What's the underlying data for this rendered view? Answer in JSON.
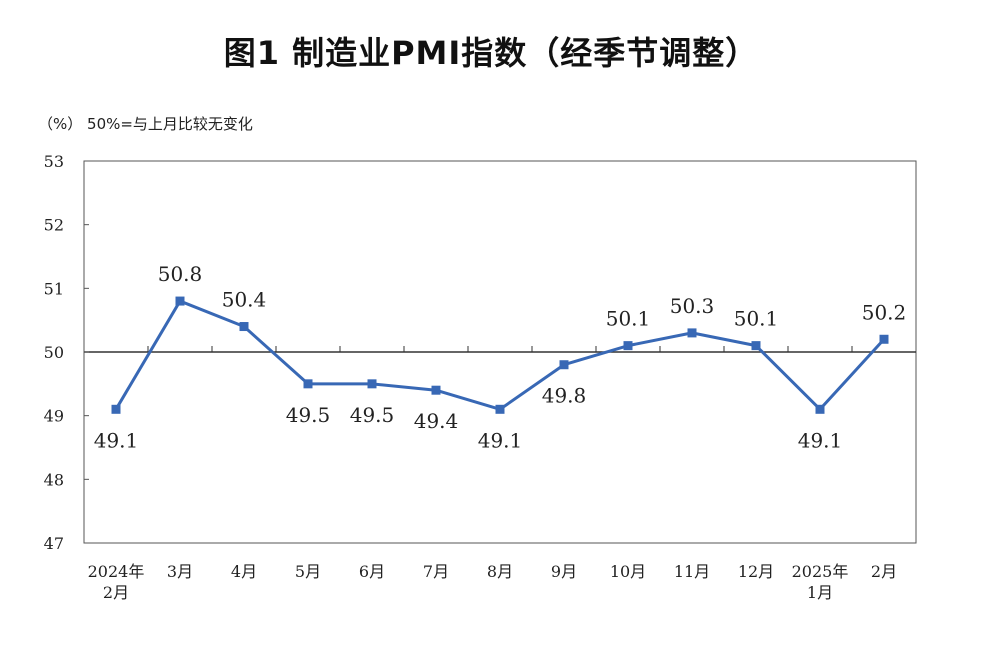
{
  "title": "图1  制造业PMI指数（经季节调整）",
  "unit_note": "（%） 50%=与上月比较无变化",
  "chart_data": {
    "type": "line",
    "title": "图1  制造业PMI指数（经季节调整）",
    "ylabel": "（%）",
    "note": "50%=与上月比较无变化",
    "ylim": [
      47,
      53
    ],
    "yticks": [
      47,
      48,
      49,
      50,
      51,
      52,
      53
    ],
    "reference_line": 50,
    "grid": false,
    "categories": [
      [
        "2024年",
        "2月"
      ],
      [
        "3月"
      ],
      [
        "4月"
      ],
      [
        "5月"
      ],
      [
        "6月"
      ],
      [
        "7月"
      ],
      [
        "8月"
      ],
      [
        "9月"
      ],
      [
        "10月"
      ],
      [
        "11月"
      ],
      [
        "12月"
      ],
      [
        "2025年",
        "1月"
      ],
      [
        "2月"
      ]
    ],
    "series": [
      {
        "values": [
          49.1,
          50.8,
          50.4,
          49.5,
          49.5,
          49.4,
          49.1,
          49.8,
          50.1,
          50.3,
          50.1,
          49.1,
          50.2
        ],
        "labels": [
          "49.1",
          "50.8",
          "50.4",
          "49.5",
          "49.5",
          "49.4",
          "49.1",
          "49.8",
          "50.1",
          "50.3",
          "50.1",
          "49.1",
          "50.2"
        ],
        "label_positions": [
          "below",
          "above",
          "above",
          "below",
          "below",
          "below",
          "below",
          "below",
          "above",
          "above",
          "above",
          "below",
          "above"
        ],
        "color": "#3868B5"
      }
    ]
  }
}
